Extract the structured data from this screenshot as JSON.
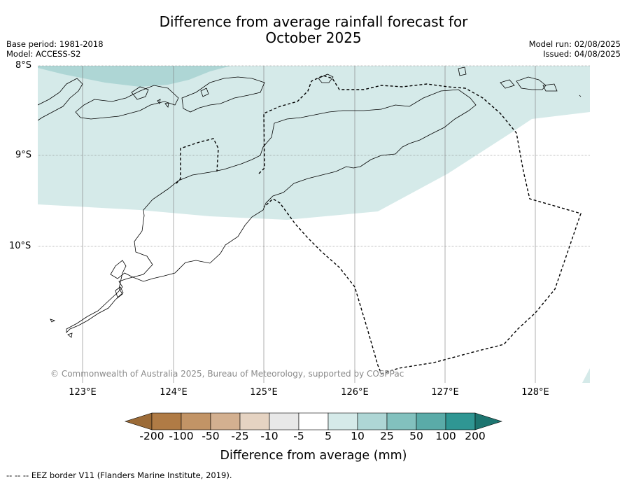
{
  "title_line1": "Difference from average rainfall forecast for",
  "title_line2": "October 2025",
  "meta_left": {
    "base_period": "Base period: 1981-2018",
    "model": "Model: ACCESS-S2"
  },
  "meta_right": {
    "model_run": "Model run: 02/08/2025",
    "issued": "Issued: 04/08/2025"
  },
  "latitudes": [
    "8°S",
    "9°S",
    "10°S"
  ],
  "longitudes": [
    "123°E",
    "124°E",
    "125°E",
    "126°E",
    "127°E",
    "128°E"
  ],
  "copyright": "© Commonwealth of Australia 2025, Bureau of Meteorology, supported by COSPPac",
  "colorbar": {
    "title": "Difference from average (mm)",
    "labels": [
      "-200",
      "-100",
      "-50",
      "-25",
      "-10",
      "-5",
      "5",
      "10",
      "25",
      "50",
      "100",
      "200"
    ],
    "colors": [
      "#9c6b37",
      "#b07b45",
      "#c29466",
      "#d3b090",
      "#e5d3c2",
      "#e8e8e8",
      "#ffffff",
      "#d5eae9",
      "#aed6d5",
      "#82c1be",
      "#5aaba8",
      "#2f9693",
      "#1d7570"
    ]
  },
  "footer": "--  --  -- EEZ border V11 (Flanders Marine Institute, 2019)."
}
